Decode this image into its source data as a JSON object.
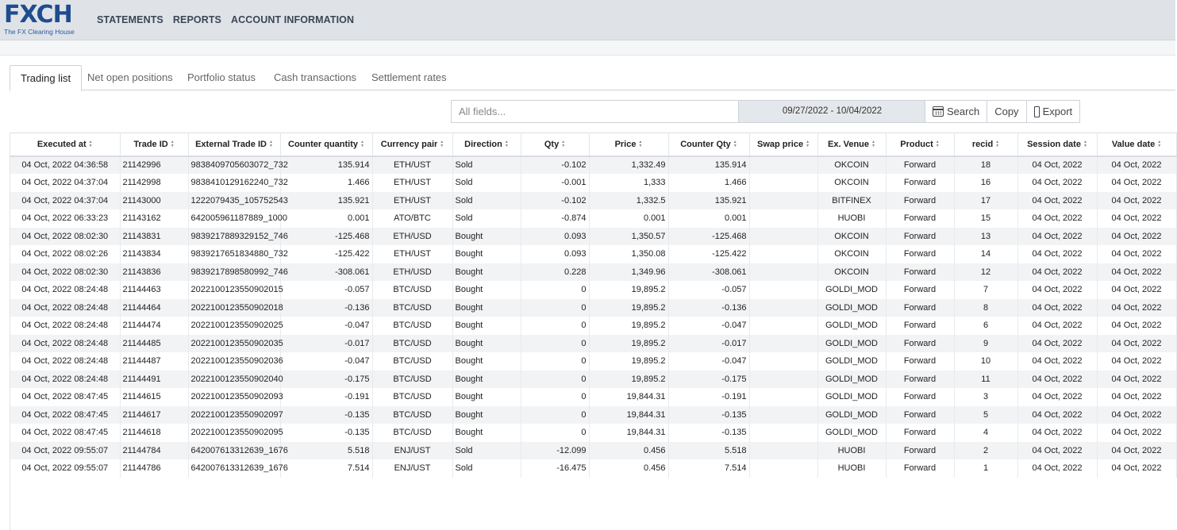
{
  "header": {
    "logo_text": "FXCH",
    "logo_subtitle": "The FX Clearing House",
    "nav": [
      "STATEMENTS",
      "REPORTS",
      "ACCOUNT INFORMATION"
    ]
  },
  "tabs": [
    "Trading list",
    "Net open positions",
    "Portfolio status",
    "Cash transactions",
    "Settlement rates"
  ],
  "active_tab": "Trading list",
  "toolbar": {
    "search_placeholder": "All fields...",
    "date_range": "09/27/2022 - 10/04/2022",
    "search_label": "Search",
    "copy_label": "Copy",
    "export_label": "Export"
  },
  "table": {
    "columns": [
      "Executed at",
      "Trade ID",
      "External Trade ID",
      "Counter quantity",
      "Currency pair",
      "Direction",
      "Qty",
      "Price",
      "Counter Qty",
      "Swap price",
      "Ex. Venue",
      "Product",
      "recid",
      "Session date",
      "Value date"
    ],
    "rows": [
      [
        "04 Oct, 2022 04:36:58",
        "21142996",
        "9838409705603072_732",
        "135.914",
        "ETH/UST",
        "Sold",
        "-0.102",
        "1,332.49",
        "135.914",
        "",
        "OKCOIN",
        "Forward",
        "18",
        "04 Oct, 2022",
        "04 Oct, 2022"
      ],
      [
        "04 Oct, 2022 04:37:04",
        "21142998",
        "9838410129162240_732",
        "1.466",
        "ETH/UST",
        "Sold",
        "-0.001",
        "1,333",
        "1.466",
        "",
        "OKCOIN",
        "Forward",
        "16",
        "04 Oct, 2022",
        "04 Oct, 2022"
      ],
      [
        "04 Oct, 2022 04:37:04",
        "21143000",
        "1222079435_105752543",
        "135.921",
        "ETH/UST",
        "Sold",
        "-0.102",
        "1,332.5",
        "135.921",
        "",
        "BITFINEX",
        "Forward",
        "17",
        "04 Oct, 2022",
        "04 Oct, 2022"
      ],
      [
        "04 Oct, 2022 06:33:23",
        "21143162",
        "642005961187889_1000",
        "0.001",
        "ATO/BTC",
        "Sold",
        "-0.874",
        "0.001",
        "0.001",
        "",
        "HUOBI",
        "Forward",
        "15",
        "04 Oct, 2022",
        "04 Oct, 2022"
      ],
      [
        "04 Oct, 2022 08:02:30",
        "21143831",
        "9839217889329152_746",
        "-125.468",
        "ETH/USD",
        "Bought",
        "0.093",
        "1,350.57",
        "-125.468",
        "",
        "OKCOIN",
        "Forward",
        "13",
        "04 Oct, 2022",
        "04 Oct, 2022"
      ],
      [
        "04 Oct, 2022 08:02:26",
        "21143834",
        "9839217651834880_732",
        "-125.422",
        "ETH/UST",
        "Bought",
        "0.093",
        "1,350.08",
        "-125.422",
        "",
        "OKCOIN",
        "Forward",
        "14",
        "04 Oct, 2022",
        "04 Oct, 2022"
      ],
      [
        "04 Oct, 2022 08:02:30",
        "21143836",
        "9839217898580992_746",
        "-308.061",
        "ETH/USD",
        "Bought",
        "0.228",
        "1,349.96",
        "-308.061",
        "",
        "OKCOIN",
        "Forward",
        "12",
        "04 Oct, 2022",
        "04 Oct, 2022"
      ],
      [
        "04 Oct, 2022 08:24:48",
        "21144463",
        "2022100123550902015",
        "-0.057",
        "BTC/USD",
        "Bought",
        "0",
        "19,895.2",
        "-0.057",
        "",
        "GOLDI_MOD",
        "Forward",
        "7",
        "04 Oct, 2022",
        "04 Oct, 2022"
      ],
      [
        "04 Oct, 2022 08:24:48",
        "21144464",
        "2022100123550902018",
        "-0.136",
        "BTC/USD",
        "Bought",
        "0",
        "19,895.2",
        "-0.136",
        "",
        "GOLDI_MOD",
        "Forward",
        "8",
        "04 Oct, 2022",
        "04 Oct, 2022"
      ],
      [
        "04 Oct, 2022 08:24:48",
        "21144474",
        "2022100123550902025",
        "-0.047",
        "BTC/USD",
        "Bought",
        "0",
        "19,895.2",
        "-0.047",
        "",
        "GOLDI_MOD",
        "Forward",
        "6",
        "04 Oct, 2022",
        "04 Oct, 2022"
      ],
      [
        "04 Oct, 2022 08:24:48",
        "21144485",
        "2022100123550902035",
        "-0.017",
        "BTC/USD",
        "Bought",
        "0",
        "19,895.2",
        "-0.017",
        "",
        "GOLDI_MOD",
        "Forward",
        "9",
        "04 Oct, 2022",
        "04 Oct, 2022"
      ],
      [
        "04 Oct, 2022 08:24:48",
        "21144487",
        "2022100123550902036",
        "-0.047",
        "BTC/USD",
        "Bought",
        "0",
        "19,895.2",
        "-0.047",
        "",
        "GOLDI_MOD",
        "Forward",
        "10",
        "04 Oct, 2022",
        "04 Oct, 2022"
      ],
      [
        "04 Oct, 2022 08:24:48",
        "21144491",
        "2022100123550902040",
        "-0.175",
        "BTC/USD",
        "Bought",
        "0",
        "19,895.2",
        "-0.175",
        "",
        "GOLDI_MOD",
        "Forward",
        "11",
        "04 Oct, 2022",
        "04 Oct, 2022"
      ],
      [
        "04 Oct, 2022 08:47:45",
        "21144615",
        "2022100123550902093",
        "-0.191",
        "BTC/USD",
        "Bought",
        "0",
        "19,844.31",
        "-0.191",
        "",
        "GOLDI_MOD",
        "Forward",
        "3",
        "04 Oct, 2022",
        "04 Oct, 2022"
      ],
      [
        "04 Oct, 2022 08:47:45",
        "21144617",
        "2022100123550902097",
        "-0.135",
        "BTC/USD",
        "Bought",
        "0",
        "19,844.31",
        "-0.135",
        "",
        "GOLDI_MOD",
        "Forward",
        "5",
        "04 Oct, 2022",
        "04 Oct, 2022"
      ],
      [
        "04 Oct, 2022 08:47:45",
        "21144618",
        "2022100123550902095",
        "-0.135",
        "BTC/USD",
        "Bought",
        "0",
        "19,844.31",
        "-0.135",
        "",
        "GOLDI_MOD",
        "Forward",
        "4",
        "04 Oct, 2022",
        "04 Oct, 2022"
      ],
      [
        "04 Oct, 2022 09:55:07",
        "21144784",
        "642007613312639_1676",
        "5.518",
        "ENJ/UST",
        "Sold",
        "-12.099",
        "0.456",
        "5.518",
        "",
        "HUOBI",
        "Forward",
        "2",
        "04 Oct, 2022",
        "04 Oct, 2022"
      ],
      [
        "04 Oct, 2022 09:55:07",
        "21144786",
        "642007613312639_1676",
        "7.514",
        "ENJ/UST",
        "Sold",
        "-16.475",
        "0.456",
        "7.514",
        "",
        "HUOBI",
        "Forward",
        "1",
        "04 Oct, 2022",
        "04 Oct, 2022"
      ]
    ]
  }
}
